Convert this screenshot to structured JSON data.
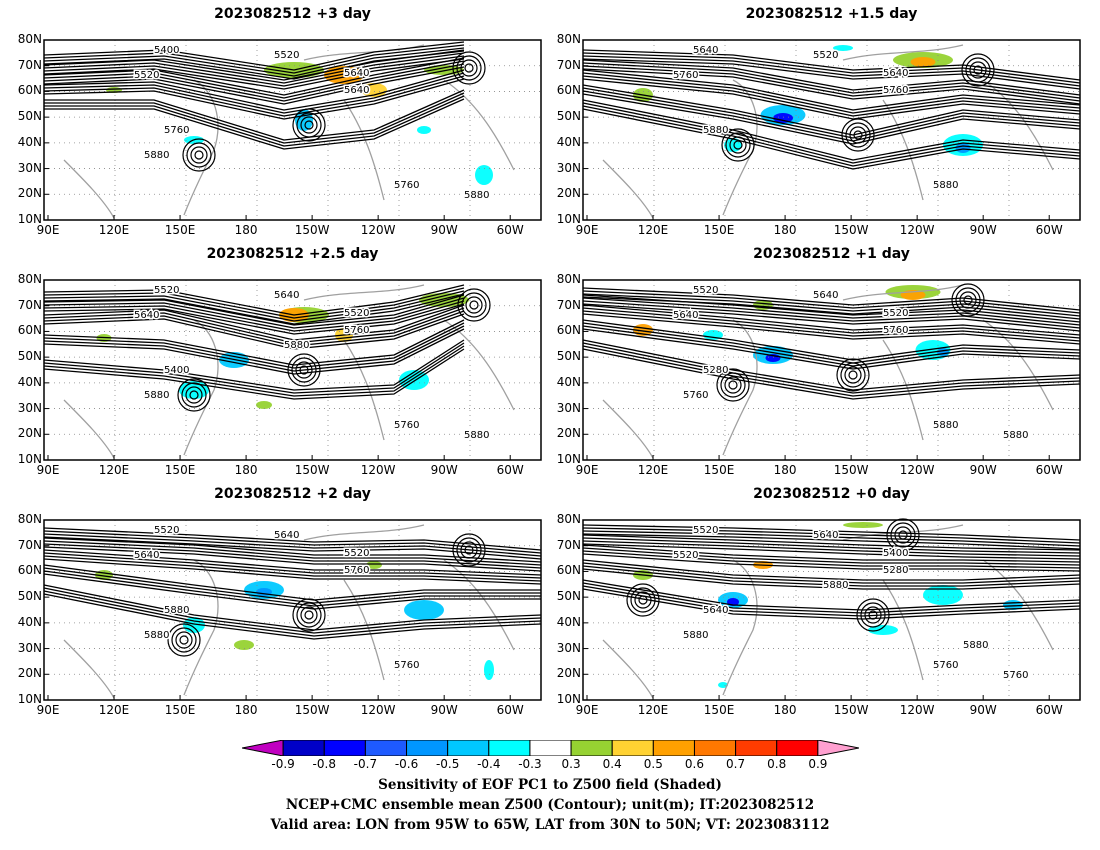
{
  "panels": [
    {
      "title": "2023082512 +3 day",
      "contours": [
        "5400",
        "5520",
        "5640",
        "5520",
        "5640",
        "5760",
        "5760",
        "5880",
        "5880"
      ]
    },
    {
      "title": "2023082512 +1.5 day",
      "contours": [
        "5640",
        "5520",
        "5640",
        "5760",
        "5760",
        "5880",
        "5880"
      ]
    },
    {
      "title": "2023082512 +2.5 day",
      "contours": [
        "5520",
        "5640",
        "5520",
        "5640",
        "5760",
        "5400",
        "5760",
        "5880",
        "5880",
        "5880"
      ]
    },
    {
      "title": "2023082512 +1 day",
      "contours": [
        "5520",
        "5640",
        "5520",
        "5640",
        "5760",
        "5280",
        "5880",
        "5760",
        "5880"
      ]
    },
    {
      "title": "2023082512 +2 day",
      "contours": [
        "5520",
        "5640",
        "5520",
        "5640",
        "5760",
        "5880",
        "5760",
        "5880"
      ]
    },
    {
      "title": "2023082512 +0 day",
      "contours": [
        "5520",
        "5640",
        "5400",
        "5520",
        "5280",
        "5640",
        "5760",
        "5880",
        "5760",
        "5880",
        "5880"
      ]
    }
  ],
  "axes": {
    "lat_labels": [
      "80N",
      "70N",
      "60N",
      "50N",
      "40N",
      "30N",
      "20N",
      "10N"
    ],
    "lon_labels": [
      "90E",
      "120E",
      "150E",
      "180",
      "150W",
      "120W",
      "90W",
      "60W"
    ]
  },
  "colorbar": {
    "labels": [
      "-0.9",
      "-0.8",
      "-0.7",
      "-0.6",
      "-0.5",
      "-0.4",
      "-0.3",
      "0.3",
      "0.4",
      "0.5",
      "0.6",
      "0.7",
      "0.8",
      "0.9"
    ],
    "colors": [
      "#c000c0",
      "#0000c8",
      "#0000ff",
      "#1e5aff",
      "#0096ff",
      "#00c8ff",
      "#00ffff",
      "#ffffff",
      "#96d232",
      "#ffd232",
      "#ffa000",
      "#ff7800",
      "#ff3c00",
      "#ff0000",
      "#ffa0d0"
    ]
  },
  "caption": {
    "line1": "Sensitivity of EOF PC1 to Z500 field (Shaded)",
    "line2": "NCEP+CMC ensemble mean Z500 (Contour); unit(m); IT:2023082512",
    "line3": "Valid area: LON from 95W to 65W, LAT from 30N to 50N; VT: 2023083112"
  }
}
